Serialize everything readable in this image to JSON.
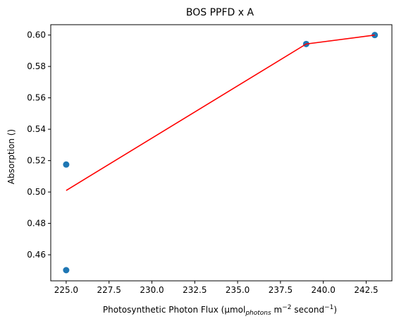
{
  "chart_data": {
    "type": "scatter",
    "title": "BOS PPFD x A",
    "xlabel": {
      "main": "Photosynthetic Photon Flux (µmol",
      "subscript": "photons",
      "mid": " m",
      "sup1": "−2",
      "mid2": " second",
      "sup2": "−1",
      "end": ")"
    },
    "ylabel": "Absorption ()",
    "xlim": [
      224.1,
      244.0
    ],
    "ylim": [
      0.4434,
      0.6066
    ],
    "xticks": [
      225.0,
      227.5,
      230.0,
      232.5,
      235.0,
      237.5,
      240.0,
      242.5
    ],
    "xtick_labels": [
      "225.0",
      "227.5",
      "230.0",
      "232.5",
      "235.0",
      "237.5",
      "240.0",
      "242.5"
    ],
    "yticks": [
      0.46,
      0.48,
      0.5,
      0.52,
      0.54,
      0.56,
      0.58,
      0.6
    ],
    "ytick_labels": [
      "0.46",
      "0.48",
      "0.50",
      "0.52",
      "0.54",
      "0.56",
      "0.58",
      "0.60"
    ],
    "grid": false,
    "series": [
      {
        "kind": "scatter",
        "color": "#1f77b4",
        "points": [
          {
            "x": 225,
            "y": 0.5175
          },
          {
            "x": 225,
            "y": 0.4502
          },
          {
            "x": 239,
            "y": 0.5943
          },
          {
            "x": 243,
            "y": 0.6
          }
        ]
      },
      {
        "kind": "line",
        "color": "#ff0000",
        "points": [
          {
            "x": 225,
            "y": 0.501
          },
          {
            "x": 239,
            "y": 0.5943
          },
          {
            "x": 243,
            "y": 0.6
          }
        ]
      }
    ]
  }
}
